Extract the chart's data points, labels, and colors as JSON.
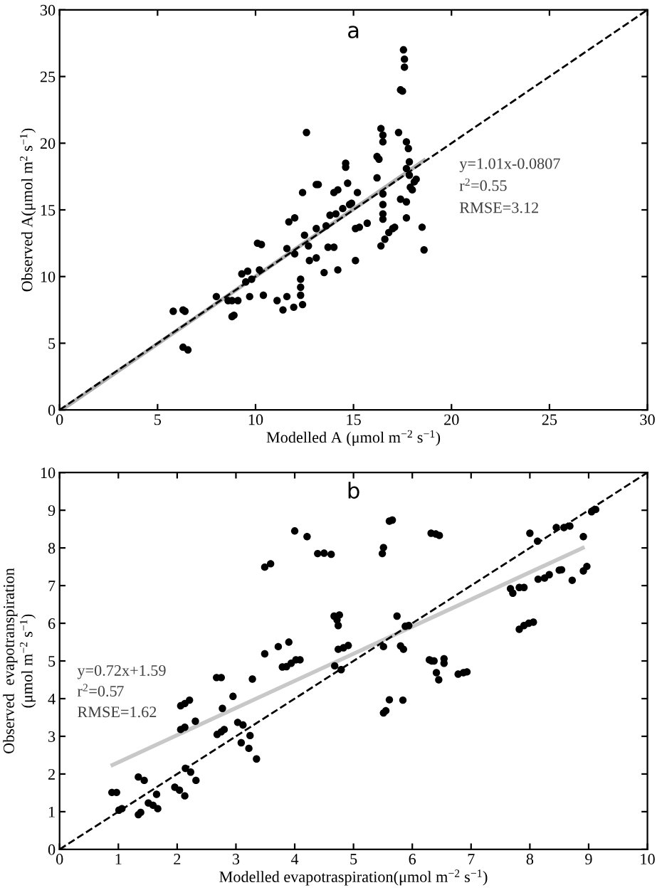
{
  "chart_data": [
    {
      "type": "scatter",
      "title": "a",
      "xlabel": "Modelled A (μmol m$^{−2}$ s$^{−1}$)",
      "ylabel": "Observed A(μmol m$^{2}$ s$^{−1}$)",
      "xlim": [
        0,
        30
      ],
      "ylim": [
        0,
        30
      ],
      "xticks": [
        0,
        5,
        10,
        15,
        20,
        25,
        30
      ],
      "yticks": [
        0,
        5,
        10,
        15,
        20,
        25,
        30
      ],
      "grid": false,
      "annotations": [
        "y=1.01x-0.0807",
        "r$^{2}$=0.55",
        "RMSE=3.12"
      ],
      "series": [
        {
          "color": "#000000",
          "marker": "circle",
          "x": [
            5.8,
            6.3,
            6.4,
            6.3,
            6.55,
            8.0,
            8.6,
            8.8,
            8.8,
            8.9,
            9.1,
            9.3,
            9.6,
            9.5,
            9.8,
            9.7,
            10.1,
            10.3,
            10.2,
            10.4,
            11.1,
            11.4,
            11.6,
            11.6,
            11.7,
            12.0,
            11.95,
            12.0,
            12.3,
            12.3,
            12.3,
            12.4,
            12.4,
            12.5,
            12.6,
            12.7,
            12.75,
            13.1,
            13.1,
            13.1,
            13.2,
            13.5,
            13.6,
            13.7,
            14.0,
            13.8,
            14.1,
            14.0,
            14.2,
            14.2,
            14.45,
            14.8,
            14.9,
            14.6,
            14.6,
            14.7,
            15.1,
            15.1,
            15.3,
            15.2,
            15.7,
            16.2,
            16.2,
            16.3,
            16.4,
            16.5,
            16.5,
            16.5,
            16.5,
            16.5,
            16.5,
            16.4,
            16.6,
            16.8,
            17.0,
            17.1,
            17.3,
            17.4,
            17.5,
            17.55,
            17.6,
            17.6,
            17.4,
            17.7,
            17.7,
            17.7,
            17.8,
            17.7,
            17.85,
            17.85,
            17.9,
            18.0,
            18.1,
            18.2,
            18.5,
            18.6
          ],
          "values": [
            7.4,
            7.5,
            7.4,
            4.7,
            4.5,
            8.5,
            8.2,
            8.2,
            7.0,
            7.1,
            8.2,
            10.2,
            10.4,
            9.6,
            9.8,
            8.5,
            12.5,
            12.4,
            10.5,
            8.6,
            8.2,
            7.5,
            8.5,
            12.1,
            14.1,
            14.4,
            7.7,
            11.7,
            9.8,
            9.2,
            8.6,
            7.9,
            16.3,
            13.1,
            20.8,
            12.3,
            11.2,
            11.4,
            13.6,
            16.9,
            16.9,
            10.3,
            13.8,
            12.2,
            12.2,
            14.6,
            14.7,
            16.3,
            16.5,
            10.5,
            15.1,
            15.4,
            15.5,
            18.5,
            18.2,
            17.0,
            11.2,
            13.6,
            13.7,
            16.3,
            14.0,
            17.4,
            19.0,
            18.8,
            21.1,
            20.6,
            20.1,
            16.2,
            15.4,
            14.7,
            14.3,
            12.3,
            12.8,
            13.3,
            13.6,
            13.7,
            20.8,
            24.0,
            23.9,
            27.0,
            26.3,
            25.7,
            15.8,
            15.6,
            14.4,
            20.1,
            19.6,
            18.1,
            18.6,
            17.6,
            16.7,
            16.5,
            17.1,
            17.3,
            13.7,
            12.0
          ]
        },
        {
          "type": "line",
          "color": "#000000",
          "line_style": "dashed",
          "x": [
            0,
            30
          ],
          "values": [
            0,
            30
          ]
        },
        {
          "type": "line",
          "color": "#b0b0b0",
          "line_style": "solid",
          "x": [
            0.1,
            18.6
          ],
          "values": [
            0.0,
            18.7
          ]
        }
      ]
    },
    {
      "type": "scatter",
      "title": "b",
      "xlabel": "Modelled evapotraspiration(μmol m$^{−2}$ s$^{−1}$)",
      "ylabel": "Observed  evapotranspiration\n(μmol m$^{−2}$ s$^{−1}$)",
      "xlim": [
        0,
        10
      ],
      "ylim": [
        0,
        10
      ],
      "xticks": [
        0,
        1,
        2,
        3,
        4,
        5,
        6,
        7,
        8,
        9,
        10
      ],
      "yticks": [
        0,
        1,
        2,
        3,
        4,
        5,
        6,
        7,
        8,
        9,
        10
      ],
      "grid": false,
      "annotations": [
        "y=0.72x+1.59",
        "r$^{2}$=0.57",
        "RMSE=1.62"
      ],
      "series": [
        {
          "color": "#000000",
          "marker": "circle",
          "x": [
            0.89,
            0.97,
            1.01,
            1.06,
            1.34,
            1.44,
            1.34,
            1.38,
            1.51,
            1.59,
            1.67,
            1.65,
            1.96,
            2.04,
            2.13,
            2.14,
            2.23,
            2.32,
            2.06,
            2.13,
            2.06,
            2.13,
            2.21,
            2.31,
            2.67,
            2.75,
            2.68,
            2.75,
            2.8,
            2.77,
            2.95,
            3.03,
            3.12,
            3.09,
            3.22,
            3.24,
            3.28,
            3.35,
            3.49,
            3.49,
            3.59,
            3.72,
            3.79,
            3.86,
            3.94,
            4.02,
            4.09,
            3.9,
            4.0,
            4.21,
            4.39,
            4.5,
            4.62,
            4.67,
            4.72,
            4.74,
            4.76,
            4.68,
            4.74,
            4.83,
            4.91,
            4.79,
            5.49,
            5.51,
            5.61,
            5.66,
            5.51,
            5.51,
            5.55,
            5.61,
            5.74,
            5.8,
            5.85,
            5.84,
            5.88,
            5.94,
            6.29,
            6.33,
            6.37,
            6.32,
            6.4,
            6.46,
            6.41,
            6.45,
            6.54,
            6.54,
            6.78,
            6.87,
            6.93,
            7.67,
            7.71,
            7.82,
            7.9,
            7.82,
            7.9,
            7.98,
            8.06,
            8.0,
            8.13,
            8.14,
            8.25,
            8.33,
            8.45,
            8.5,
            8.54,
            8.58,
            8.68,
            8.72,
            8.91,
            8.97,
            8.91,
            9.05,
            9.12
          ],
          "values": [
            1.51,
            1.51,
            1.04,
            1.08,
            1.92,
            1.83,
            0.92,
            0.98,
            1.23,
            1.17,
            1.08,
            1.46,
            1.65,
            1.57,
            1.42,
            2.15,
            2.05,
            1.83,
            3.18,
            3.24,
            3.81,
            3.87,
            3.96,
            3.4,
            4.56,
            4.56,
            3.05,
            3.12,
            3.18,
            3.74,
            4.06,
            3.37,
            3.3,
            2.83,
            2.68,
            3.02,
            4.52,
            2.4,
            5.19,
            7.49,
            7.58,
            5.38,
            4.84,
            4.85,
            4.94,
            5.03,
            5.03,
            5.5,
            8.45,
            8.3,
            7.85,
            7.86,
            7.83,
            6.19,
            6.09,
            5.94,
            6.22,
            4.87,
            5.31,
            5.35,
            5.41,
            4.77,
            7.85,
            8.01,
            8.71,
            8.74,
            5.38,
            3.62,
            3.68,
            3.97,
            6.19,
            5.4,
            5.31,
            3.96,
            5.92,
            5.94,
            5.03,
            5.0,
            5.0,
            8.39,
            8.37,
            8.33,
            4.69,
            4.5,
            4.94,
            5.06,
            4.65,
            4.69,
            4.71,
            6.92,
            6.8,
            6.95,
            6.95,
            5.84,
            5.94,
            6.0,
            6.03,
            8.39,
            8.18,
            7.17,
            7.2,
            7.29,
            8.54,
            7.41,
            7.42,
            8.54,
            8.58,
            7.14,
            7.39,
            7.51,
            8.3,
            8.96,
            9.02
          ]
        },
        {
          "type": "line",
          "color": "#000000",
          "line_style": "dashed",
          "x": [
            0,
            10
          ],
          "values": [
            0,
            10
          ]
        },
        {
          "type": "line",
          "color": "#c8c8c8",
          "line_style": "solid",
          "x": [
            0.9,
            8.9
          ],
          "values": [
            2.24,
            8.0
          ]
        }
      ]
    }
  ]
}
